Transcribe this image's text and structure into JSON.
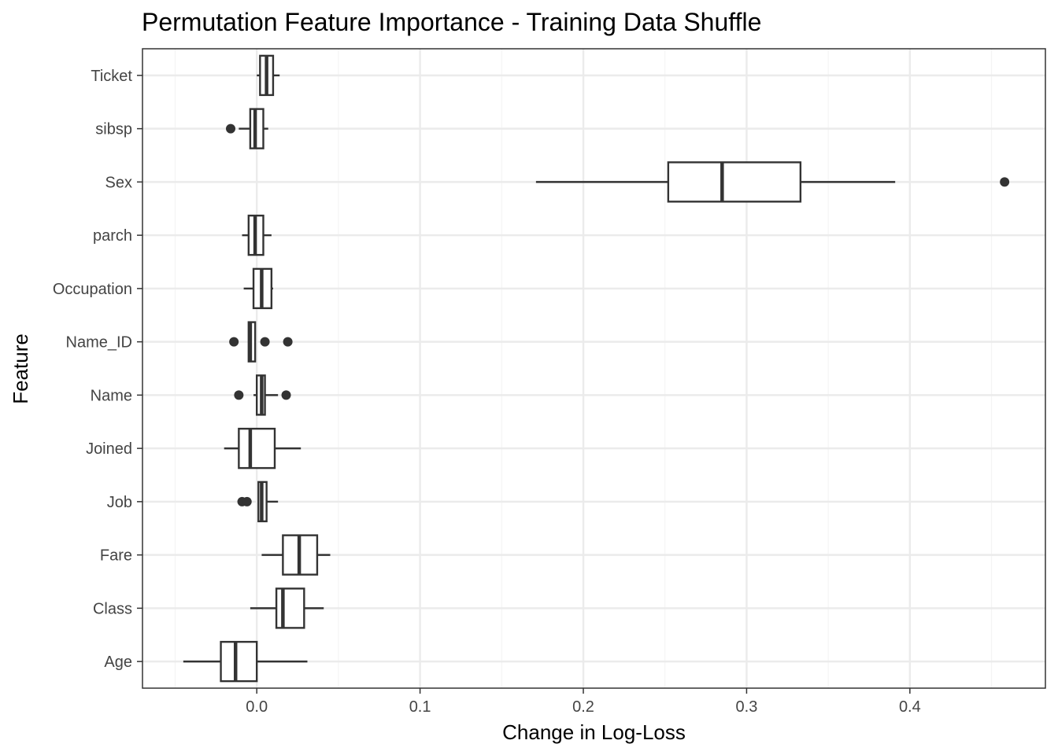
{
  "chart_data": {
    "type": "boxplot",
    "orientation": "horizontal",
    "title": "Permutation Feature Importance - Training Data Shuffle",
    "xlabel": "Change in Log-Loss",
    "ylabel": "Feature",
    "xlim": [
      -0.07,
      0.483
    ],
    "x_ticks": [
      0.0,
      0.1,
      0.2,
      0.3,
      0.4
    ],
    "x_tick_labels": [
      "0.0",
      "0.1",
      "0.2",
      "0.3",
      "0.4"
    ],
    "x_minor_ticks": [
      -0.05,
      0.05,
      0.15,
      0.25,
      0.35,
      0.45
    ],
    "grid": true,
    "colors": {
      "box_stroke": "#333333",
      "box_fill": "#ffffff",
      "grid_major": "#ebebeb",
      "grid_minor": "#f4f4f4",
      "panel_border": "#333333"
    },
    "categories": [
      "Ticket",
      "sibsp",
      "Sex",
      "parch",
      "Occupation",
      "Name_ID",
      "Name",
      "Joined",
      "Job",
      "Fare",
      "Class",
      "Age"
    ],
    "boxes": [
      {
        "feature": "Ticket",
        "lower_whisker": 0.0,
        "q1": 0.002,
        "median": 0.006,
        "q3": 0.01,
        "upper_whisker": 0.014,
        "outliers": []
      },
      {
        "feature": "sibsp",
        "lower_whisker": -0.011,
        "q1": -0.004,
        "median": -0.001,
        "q3": 0.004,
        "upper_whisker": 0.007,
        "outliers": [
          -0.016
        ]
      },
      {
        "feature": "Sex",
        "lower_whisker": 0.171,
        "q1": 0.252,
        "median": 0.285,
        "q3": 0.333,
        "upper_whisker": 0.391,
        "outliers": [
          0.458
        ]
      },
      {
        "feature": "parch",
        "lower_whisker": -0.009,
        "q1": -0.005,
        "median": -0.001,
        "q3": 0.004,
        "upper_whisker": 0.009,
        "outliers": []
      },
      {
        "feature": "Occupation",
        "lower_whisker": -0.008,
        "q1": -0.002,
        "median": 0.003,
        "q3": 0.009,
        "upper_whisker": 0.01,
        "outliers": []
      },
      {
        "feature": "Name_ID",
        "lower_whisker": -0.005,
        "q1": -0.005,
        "median": -0.004,
        "q3": -0.001,
        "upper_whisker": -0.001,
        "outliers": [
          -0.014,
          0.005,
          0.019
        ]
      },
      {
        "feature": "Name",
        "lower_whisker": -0.002,
        "q1": 0.0,
        "median": 0.003,
        "q3": 0.005,
        "upper_whisker": 0.013,
        "outliers": [
          -0.011,
          0.018
        ]
      },
      {
        "feature": "Joined",
        "lower_whisker": -0.02,
        "q1": -0.011,
        "median": -0.004,
        "q3": 0.011,
        "upper_whisker": 0.027,
        "outliers": []
      },
      {
        "feature": "Job",
        "lower_whisker": 0.001,
        "q1": 0.001,
        "median": 0.003,
        "q3": 0.006,
        "upper_whisker": 0.013,
        "outliers": [
          -0.009,
          -0.006
        ]
      },
      {
        "feature": "Fare",
        "lower_whisker": 0.003,
        "q1": 0.016,
        "median": 0.026,
        "q3": 0.037,
        "upper_whisker": 0.045,
        "outliers": []
      },
      {
        "feature": "Class",
        "lower_whisker": -0.004,
        "q1": 0.012,
        "median": 0.016,
        "q3": 0.029,
        "upper_whisker": 0.041,
        "outliers": []
      },
      {
        "feature": "Age",
        "lower_whisker": -0.045,
        "q1": -0.022,
        "median": -0.013,
        "q3": 0.0,
        "upper_whisker": 0.031,
        "outliers": []
      }
    ]
  }
}
